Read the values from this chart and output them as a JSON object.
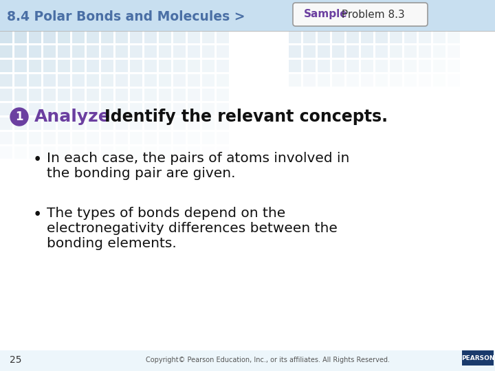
{
  "header_text": "8.4 Polar Bonds and Molecules >",
  "header_color": "#4a6fa5",
  "header_fontsize": 13.5,
  "badge_label": "Sample",
  "badge_label_color": "#6b3fa0",
  "badge_rest": " Problem 8.3",
  "badge_rest_color": "#333333",
  "badge_fontsize": 11,
  "step_number": "1",
  "step_circle_color": "#6b3fa0",
  "step_circle_text_color": "#ffffff",
  "analyze_text": "Analyze",
  "analyze_color": "#6b3fa0",
  "analyze_fontsize": 18,
  "subtitle_text": "Identify the relevant concepts.",
  "subtitle_color": "#111111",
  "subtitle_fontsize": 17,
  "bullet1_line1": "In each case, the pairs of atoms involved in",
  "bullet1_line2": "the bonding pair are given.",
  "bullet2_line1": "The types of bonds depend on the",
  "bullet2_line2": "electronegativity differences between the",
  "bullet2_line3": "bonding elements.",
  "bullet_color": "#111111",
  "bullet_fontsize": 14.5,
  "page_number": "25",
  "footer_text": "Copyright© Pearson Education, Inc., or its affiliates. All Rights Reserved.",
  "footer_color": "#555555",
  "footer_fontsize": 7,
  "tile_color": "#aecde0",
  "pearson_bg": "#1a3a6b",
  "pearson_text": "PEARSON",
  "header_bg_color": "#c8dff0",
  "slide_bg": "#ffffff"
}
